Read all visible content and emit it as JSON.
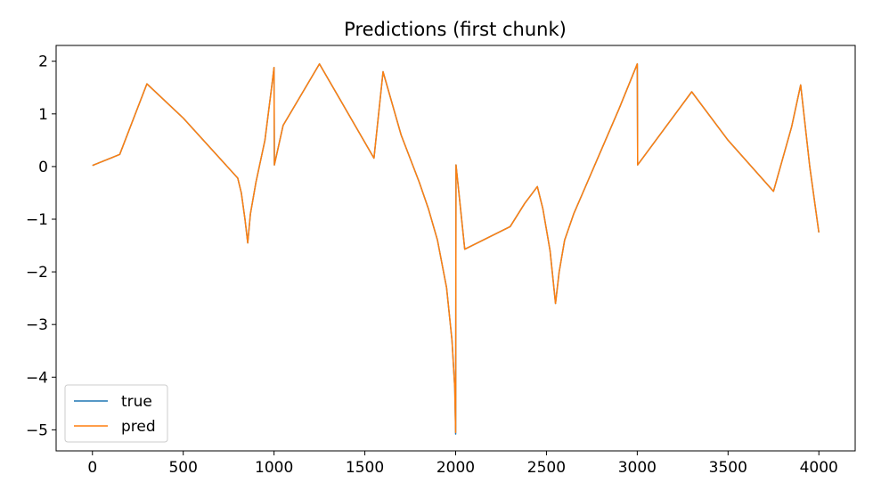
{
  "chart_data": {
    "type": "line",
    "title": "Predictions (first chunk)",
    "xlabel": "",
    "ylabel": "",
    "xlim": [
      -200,
      4200
    ],
    "ylim": [
      -5.4,
      2.3
    ],
    "xticks": [
      0,
      500,
      1000,
      1500,
      2000,
      2500,
      3000,
      3500,
      4000
    ],
    "yticks": [
      2,
      1,
      0,
      -1,
      -2,
      -3,
      -4,
      -5
    ],
    "xtick_labels": [
      "0",
      "500",
      "1000",
      "1500",
      "2000",
      "2500",
      "3000",
      "3500",
      "4000"
    ],
    "ytick_labels": [
      "2",
      "1",
      "0",
      "−1",
      "−2",
      "−3",
      "−4",
      "−5"
    ],
    "legend_position": "lower-left",
    "grid": false,
    "series": [
      {
        "name": "true",
        "color": "#1f77b4",
        "points": [
          [
            0,
            0.02
          ],
          [
            150,
            0.23
          ],
          [
            300,
            1.57
          ],
          [
            500,
            0.92
          ],
          [
            800,
            -0.22
          ],
          [
            820,
            -0.5
          ],
          [
            840,
            -1.0
          ],
          [
            855,
            -1.45
          ],
          [
            870,
            -0.9
          ],
          [
            900,
            -0.3
          ],
          [
            950,
            0.5
          ],
          [
            990,
            1.6
          ],
          [
            1000,
            1.88
          ],
          [
            1002,
            0.03
          ],
          [
            1050,
            0.78
          ],
          [
            1250,
            1.95
          ],
          [
            1550,
            0.16
          ],
          [
            1600,
            1.8
          ],
          [
            1700,
            0.6
          ],
          [
            1800,
            -0.3
          ],
          [
            1850,
            -0.8
          ],
          [
            1900,
            -1.4
          ],
          [
            1950,
            -2.3
          ],
          [
            1980,
            -3.3
          ],
          [
            1995,
            -4.2
          ],
          [
            2000,
            -5.08
          ],
          [
            2002,
            0.03
          ],
          [
            2030,
            -0.9
          ],
          [
            2050,
            -1.57
          ],
          [
            2300,
            -1.14
          ],
          [
            2380,
            -0.7
          ],
          [
            2450,
            -0.38
          ],
          [
            2480,
            -0.8
          ],
          [
            2520,
            -1.6
          ],
          [
            2550,
            -2.6
          ],
          [
            2570,
            -2.0
          ],
          [
            2600,
            -1.4
          ],
          [
            2650,
            -0.9
          ],
          [
            2700,
            -0.5
          ],
          [
            2800,
            0.3
          ],
          [
            2900,
            1.1
          ],
          [
            3000,
            1.95
          ],
          [
            3002,
            0.03
          ],
          [
            3300,
            1.42
          ],
          [
            3500,
            0.5
          ],
          [
            3750,
            -0.47
          ],
          [
            3850,
            0.75
          ],
          [
            3900,
            1.55
          ],
          [
            3950,
            0.0
          ],
          [
            4000,
            -1.25
          ]
        ]
      },
      {
        "name": "pred",
        "color": "#ff7f0e",
        "points": [
          [
            0,
            0.02
          ],
          [
            150,
            0.23
          ],
          [
            300,
            1.57
          ],
          [
            500,
            0.92
          ],
          [
            800,
            -0.22
          ],
          [
            820,
            -0.5
          ],
          [
            840,
            -1.0
          ],
          [
            855,
            -1.45
          ],
          [
            870,
            -0.9
          ],
          [
            900,
            -0.3
          ],
          [
            950,
            0.5
          ],
          [
            990,
            1.6
          ],
          [
            1000,
            1.88
          ],
          [
            1002,
            0.03
          ],
          [
            1050,
            0.78
          ],
          [
            1250,
            1.95
          ],
          [
            1550,
            0.16
          ],
          [
            1600,
            1.8
          ],
          [
            1700,
            0.6
          ],
          [
            1800,
            -0.3
          ],
          [
            1850,
            -0.8
          ],
          [
            1900,
            -1.4
          ],
          [
            1950,
            -2.3
          ],
          [
            1980,
            -3.3
          ],
          [
            1995,
            -4.2
          ],
          [
            2000,
            -5.05
          ],
          [
            2002,
            0.03
          ],
          [
            2030,
            -0.9
          ],
          [
            2050,
            -1.57
          ],
          [
            2300,
            -1.14
          ],
          [
            2380,
            -0.7
          ],
          [
            2450,
            -0.38
          ],
          [
            2480,
            -0.8
          ],
          [
            2520,
            -1.6
          ],
          [
            2550,
            -2.6
          ],
          [
            2570,
            -2.0
          ],
          [
            2600,
            -1.4
          ],
          [
            2650,
            -0.9
          ],
          [
            2700,
            -0.5
          ],
          [
            2800,
            0.3
          ],
          [
            2900,
            1.1
          ],
          [
            3000,
            1.95
          ],
          [
            3002,
            0.03
          ],
          [
            3300,
            1.42
          ],
          [
            3500,
            0.5
          ],
          [
            3750,
            -0.47
          ],
          [
            3850,
            0.75
          ],
          [
            3900,
            1.55
          ],
          [
            3950,
            0.0
          ],
          [
            4000,
            -1.25
          ]
        ]
      }
    ]
  }
}
